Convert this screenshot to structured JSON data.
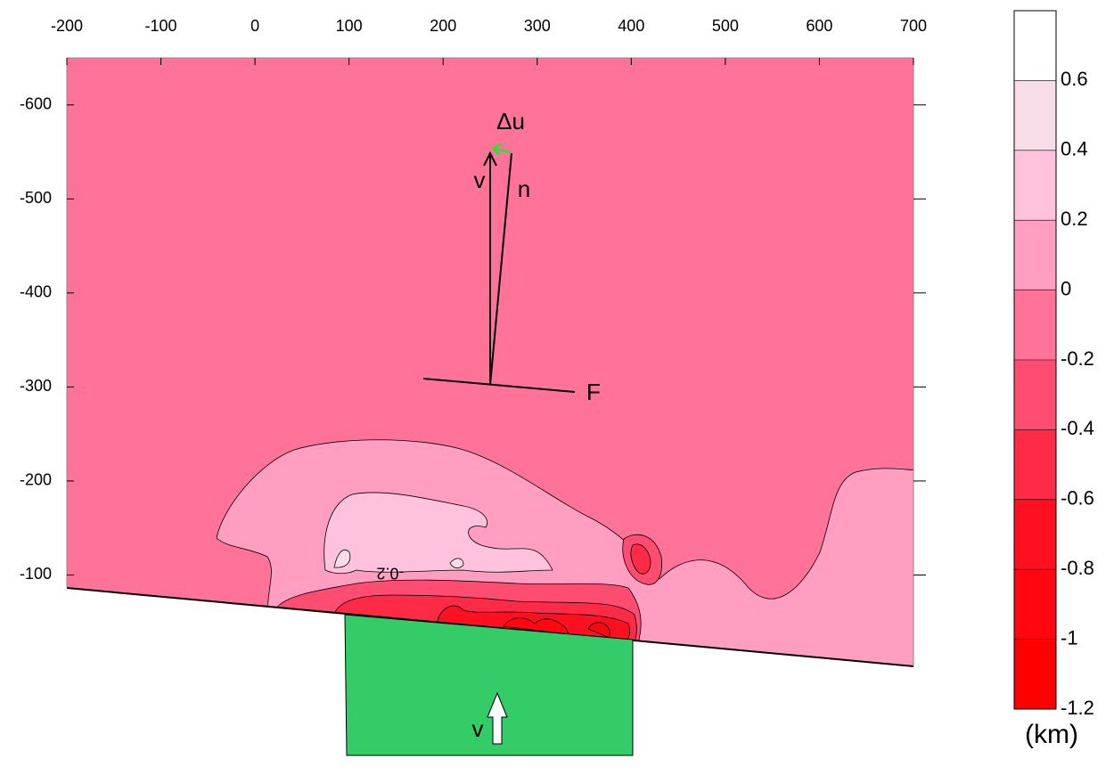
{
  "chart_data": {
    "type": "contour",
    "xlim": [
      -200,
      700
    ],
    "xticks": [
      -200,
      -100,
      0,
      100,
      200,
      300,
      400,
      500,
      600,
      700
    ],
    "ylim": [
      -650,
      0
    ],
    "yticks": [
      -600,
      -500,
      -400,
      -300,
      -200,
      -100
    ],
    "y_reversed": true,
    "colorbar": {
      "lim": [
        -1.2,
        0.8
      ],
      "ticks": [
        -1.2,
        -1,
        -0.8,
        -0.6,
        -0.4,
        -0.2,
        0,
        0.2,
        0.4,
        0.6
      ],
      "levels": [
        -1.2,
        -1,
        -0.8,
        -0.6,
        -0.4,
        -0.2,
        0,
        0.2,
        0.4,
        0.6,
        0.8
      ],
      "colors": [
        "#ff0000",
        "#ff0610",
        "#ff1020",
        "#ff2a45",
        "#ff4d72",
        "#ff7399",
        "#ff9ec0",
        "#ffc2dc",
        "#f8dde8",
        "#ffffff"
      ],
      "unit": "(km)"
    },
    "annotations": {
      "du": "Δu",
      "v_vector": "v",
      "normal": "n",
      "fault": "F",
      "velocity": "v",
      "contour_label": "-0.2"
    },
    "block_color": "#33cc66",
    "du_color": "#33dd33"
  }
}
